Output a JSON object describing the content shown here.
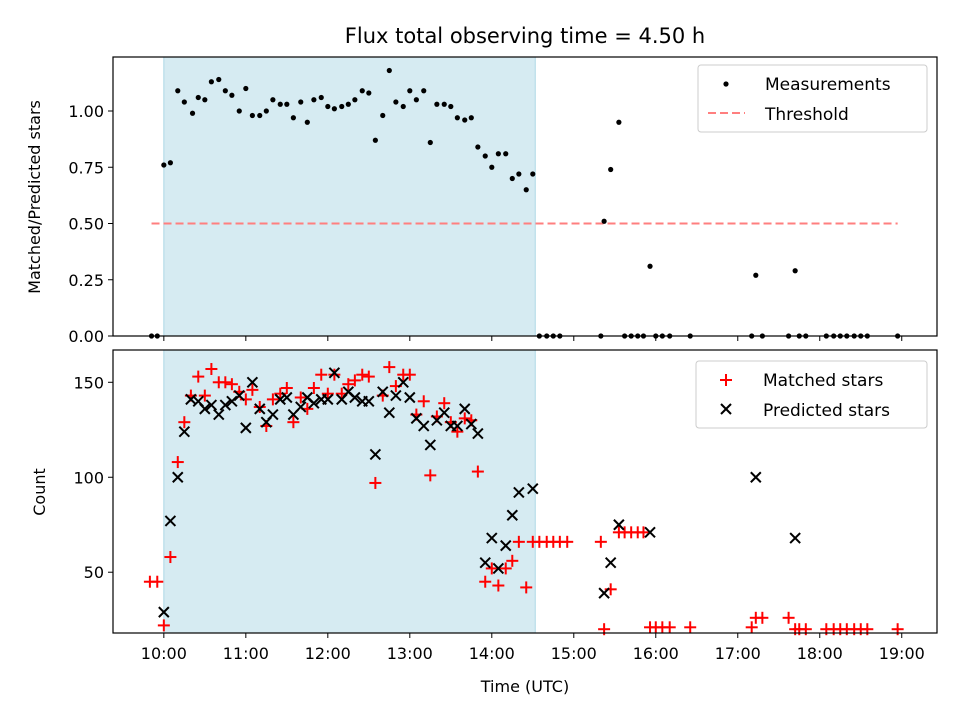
{
  "chart_data": {
    "type": "scatter",
    "title": "Flux total observing time = 4.50 h",
    "xlabel": "Time (UTC)",
    "xlim": [
      9.38,
      19.43
    ],
    "x_ticks": [
      {
        "value": 10,
        "label": "10:00"
      },
      {
        "value": 11,
        "label": "11:00"
      },
      {
        "value": 12,
        "label": "12:00"
      },
      {
        "value": 13,
        "label": "13:00"
      },
      {
        "value": 14,
        "label": "14:00"
      },
      {
        "value": 15,
        "label": "15:00"
      },
      {
        "value": 16,
        "label": "16:00"
      },
      {
        "value": 17,
        "label": "17:00"
      },
      {
        "value": 18,
        "label": "18:00"
      },
      {
        "value": 19,
        "label": "19:00"
      }
    ],
    "observing_window": [
      10.0,
      14.53
    ],
    "colors": {
      "measurement": "#000000",
      "threshold": "#ff7f7f",
      "matched": "#ff0000",
      "predicted": "#000000",
      "window": "#add8e6"
    },
    "top": {
      "ylabel": "Matched/Predicted stars",
      "ylim": [
        0,
        1.24
      ],
      "y_ticks": [
        0,
        0.25,
        0.5,
        0.75,
        1.0
      ],
      "y_tick_labels": [
        "0.00",
        "0.25",
        "0.50",
        "0.75",
        "1.00"
      ],
      "threshold": {
        "value": 0.5,
        "x_range": [
          9.85,
          18.95
        ]
      },
      "legend": {
        "position": "top-right",
        "measurements": "Measurements",
        "threshold": "Threshold"
      },
      "measurements": [
        [
          9.85,
          0.0
        ],
        [
          9.92,
          0.0
        ],
        [
          10.0,
          0.76
        ],
        [
          10.08,
          0.77
        ],
        [
          10.17,
          1.09
        ],
        [
          10.25,
          1.04
        ],
        [
          10.35,
          0.99
        ],
        [
          10.42,
          1.06
        ],
        [
          10.5,
          1.05
        ],
        [
          10.58,
          1.13
        ],
        [
          10.67,
          1.14
        ],
        [
          10.75,
          1.09
        ],
        [
          10.83,
          1.07
        ],
        [
          10.92,
          1.0
        ],
        [
          11.0,
          1.1
        ],
        [
          11.08,
          0.98
        ],
        [
          11.17,
          0.98
        ],
        [
          11.25,
          1.0
        ],
        [
          11.33,
          1.05
        ],
        [
          11.42,
          1.03
        ],
        [
          11.5,
          1.03
        ],
        [
          11.58,
          0.97
        ],
        [
          11.67,
          1.04
        ],
        [
          11.75,
          0.95
        ],
        [
          11.83,
          1.05
        ],
        [
          11.92,
          1.06
        ],
        [
          12.0,
          1.02
        ],
        [
          12.08,
          1.01
        ],
        [
          12.17,
          1.02
        ],
        [
          12.25,
          1.03
        ],
        [
          12.33,
          1.05
        ],
        [
          12.42,
          1.09
        ],
        [
          12.5,
          1.08
        ],
        [
          12.58,
          0.87
        ],
        [
          12.67,
          0.98
        ],
        [
          12.75,
          1.18
        ],
        [
          12.83,
          1.04
        ],
        [
          12.92,
          1.02
        ],
        [
          13.0,
          1.09
        ],
        [
          13.08,
          1.05
        ],
        [
          13.17,
          1.09
        ],
        [
          13.25,
          0.86
        ],
        [
          13.33,
          1.03
        ],
        [
          13.42,
          1.03
        ],
        [
          13.5,
          1.02
        ],
        [
          13.58,
          0.97
        ],
        [
          13.67,
          0.96
        ],
        [
          13.75,
          0.97
        ],
        [
          13.83,
          0.84
        ],
        [
          13.92,
          0.8
        ],
        [
          14.0,
          0.75
        ],
        [
          14.08,
          0.81
        ],
        [
          14.17,
          0.81
        ],
        [
          14.25,
          0.7
        ],
        [
          14.33,
          0.72
        ],
        [
          14.42,
          0.65
        ],
        [
          14.5,
          0.72
        ],
        [
          14.58,
          0.0
        ],
        [
          14.67,
          0.0
        ],
        [
          14.75,
          0.0
        ],
        [
          14.83,
          0.0
        ],
        [
          15.33,
          0.0
        ],
        [
          15.37,
          0.51
        ],
        [
          15.45,
          0.74
        ],
        [
          15.55,
          0.95
        ],
        [
          15.62,
          0.0
        ],
        [
          15.7,
          0.0
        ],
        [
          15.78,
          0.0
        ],
        [
          15.85,
          0.0
        ],
        [
          15.93,
          0.31
        ],
        [
          16.0,
          0.0
        ],
        [
          16.08,
          0.0
        ],
        [
          16.17,
          0.0
        ],
        [
          16.42,
          0.0
        ],
        [
          17.17,
          0.0
        ],
        [
          17.22,
          0.27
        ],
        [
          17.3,
          0.0
        ],
        [
          17.62,
          0.0
        ],
        [
          17.7,
          0.29
        ],
        [
          17.75,
          0.0
        ],
        [
          17.83,
          0.0
        ],
        [
          18.08,
          0.0
        ],
        [
          18.17,
          0.0
        ],
        [
          18.25,
          0.0
        ],
        [
          18.33,
          0.0
        ],
        [
          18.42,
          0.0
        ],
        [
          18.5,
          0.0
        ],
        [
          18.58,
          0.0
        ],
        [
          18.95,
          0.0
        ]
      ]
    },
    "bottom": {
      "ylabel": "Count",
      "ylim": [
        18,
        167
      ],
      "y_ticks": [
        50,
        100,
        150
      ],
      "y_tick_labels": [
        "50",
        "100",
        "150"
      ],
      "legend": {
        "position": "top-right",
        "matched": "Matched stars",
        "predicted": "Predicted stars"
      },
      "matched": [
        [
          9.83,
          45
        ],
        [
          9.92,
          45
        ],
        [
          10.0,
          22
        ],
        [
          10.08,
          58
        ],
        [
          10.17,
          108
        ],
        [
          10.25,
          129
        ],
        [
          10.33,
          143
        ],
        [
          10.42,
          153
        ],
        [
          10.5,
          143
        ],
        [
          10.58,
          157
        ],
        [
          10.67,
          150
        ],
        [
          10.75,
          150
        ],
        [
          10.83,
          149
        ],
        [
          10.92,
          145
        ],
        [
          11.0,
          141
        ],
        [
          11.08,
          146
        ],
        [
          11.17,
          137
        ],
        [
          11.25,
          127
        ],
        [
          11.33,
          141
        ],
        [
          11.42,
          144
        ],
        [
          11.5,
          147
        ],
        [
          11.58,
          129
        ],
        [
          11.67,
          142
        ],
        [
          11.75,
          136
        ],
        [
          11.83,
          147
        ],
        [
          11.92,
          154
        ],
        [
          12.0,
          144
        ],
        [
          12.08,
          154
        ],
        [
          12.17,
          144
        ],
        [
          12.25,
          149
        ],
        [
          12.33,
          151
        ],
        [
          12.42,
          154
        ],
        [
          12.5,
          153
        ],
        [
          12.58,
          97
        ],
        [
          12.67,
          143
        ],
        [
          12.75,
          158
        ],
        [
          12.83,
          148
        ],
        [
          12.92,
          154
        ],
        [
          13.0,
          154
        ],
        [
          13.08,
          133
        ],
        [
          13.17,
          140
        ],
        [
          13.25,
          101
        ],
        [
          13.33,
          132
        ],
        [
          13.42,
          139
        ],
        [
          13.5,
          129
        ],
        [
          13.58,
          124
        ],
        [
          13.67,
          131
        ],
        [
          13.75,
          130
        ],
        [
          13.83,
          103
        ],
        [
          13.92,
          45
        ],
        [
          14.0,
          52
        ],
        [
          14.08,
          43
        ],
        [
          14.17,
          52
        ],
        [
          14.25,
          56
        ],
        [
          14.33,
          66
        ],
        [
          14.42,
          42
        ],
        [
          14.5,
          66
        ],
        [
          14.58,
          66
        ],
        [
          14.67,
          66
        ],
        [
          14.75,
          66
        ],
        [
          14.83,
          66
        ],
        [
          14.92,
          66
        ],
        [
          15.33,
          66
        ],
        [
          15.37,
          20
        ],
        [
          15.45,
          41
        ],
        [
          15.55,
          71
        ],
        [
          15.62,
          71
        ],
        [
          15.7,
          71
        ],
        [
          15.78,
          71
        ],
        [
          15.85,
          71
        ],
        [
          15.93,
          21
        ],
        [
          16.0,
          21
        ],
        [
          16.08,
          21
        ],
        [
          16.17,
          21
        ],
        [
          16.42,
          21
        ],
        [
          17.17,
          21
        ],
        [
          17.22,
          26
        ],
        [
          17.3,
          26
        ],
        [
          17.62,
          26
        ],
        [
          17.7,
          20
        ],
        [
          17.75,
          20
        ],
        [
          17.83,
          20
        ],
        [
          18.08,
          20
        ],
        [
          18.17,
          20
        ],
        [
          18.25,
          20
        ],
        [
          18.33,
          20
        ],
        [
          18.42,
          20
        ],
        [
          18.5,
          20
        ],
        [
          18.58,
          20
        ],
        [
          18.95,
          20
        ]
      ],
      "predicted": [
        [
          10.0,
          29
        ],
        [
          10.08,
          77
        ],
        [
          10.17,
          100
        ],
        [
          10.25,
          124
        ],
        [
          10.33,
          141
        ],
        [
          10.42,
          140
        ],
        [
          10.5,
          136
        ],
        [
          10.58,
          138
        ],
        [
          10.67,
          133
        ],
        [
          10.75,
          138
        ],
        [
          10.83,
          140
        ],
        [
          10.92,
          143
        ],
        [
          11.0,
          126
        ],
        [
          11.08,
          150
        ],
        [
          11.17,
          136
        ],
        [
          11.25,
          129
        ],
        [
          11.33,
          133
        ],
        [
          11.42,
          141
        ],
        [
          11.5,
          142
        ],
        [
          11.58,
          133
        ],
        [
          11.67,
          137
        ],
        [
          11.75,
          142
        ],
        [
          11.83,
          139
        ],
        [
          11.92,
          141
        ],
        [
          12.0,
          141
        ],
        [
          12.08,
          155
        ],
        [
          12.17,
          141
        ],
        [
          12.25,
          145
        ],
        [
          12.33,
          142
        ],
        [
          12.42,
          140
        ],
        [
          12.5,
          140
        ],
        [
          12.58,
          112
        ],
        [
          12.67,
          145
        ],
        [
          12.75,
          134
        ],
        [
          12.83,
          143
        ],
        [
          12.92,
          150
        ],
        [
          13.0,
          142
        ],
        [
          13.08,
          131
        ],
        [
          13.17,
          127
        ],
        [
          13.25,
          117
        ],
        [
          13.33,
          130
        ],
        [
          13.42,
          134
        ],
        [
          13.5,
          127
        ],
        [
          13.58,
          127
        ],
        [
          13.67,
          136
        ],
        [
          13.75,
          128
        ],
        [
          13.83,
          123
        ],
        [
          13.92,
          55
        ],
        [
          14.0,
          68
        ],
        [
          14.08,
          52
        ],
        [
          14.17,
          64
        ],
        [
          14.25,
          80
        ],
        [
          14.33,
          92
        ],
        [
          14.5,
          94
        ],
        [
          15.37,
          39
        ],
        [
          15.45,
          55
        ],
        [
          15.55,
          75
        ],
        [
          15.93,
          71
        ],
        [
          17.22,
          100
        ],
        [
          17.7,
          68
        ]
      ]
    }
  }
}
